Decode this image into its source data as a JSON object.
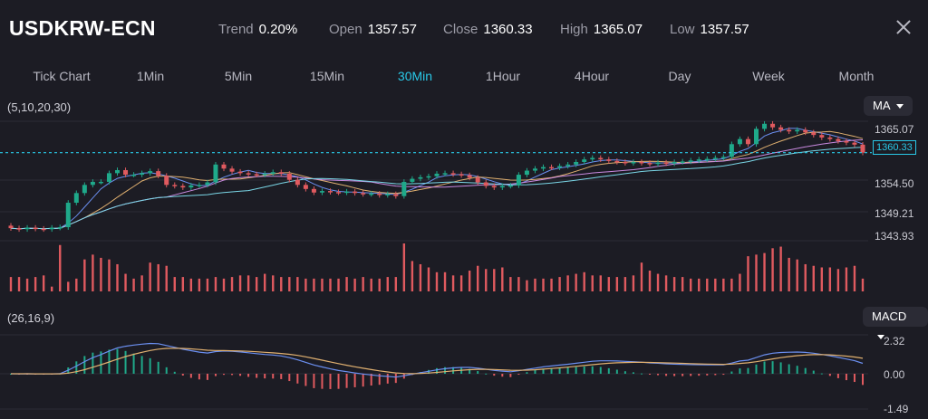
{
  "header": {
    "symbol": "USDKRW-ECN",
    "stats": [
      {
        "label": "Trend",
        "value": "0.20%"
      },
      {
        "label": "Open",
        "value": "1357.57"
      },
      {
        "label": "Close",
        "value": "1360.33"
      },
      {
        "label": "High",
        "value": "1365.07"
      },
      {
        "label": "Low",
        "value": "1357.57"
      }
    ]
  },
  "timeframes": [
    "Tick Chart",
    "1Min",
    "5Min",
    "15Min",
    "30Min",
    "1Hour",
    "4Hour",
    "Day",
    "Week",
    "Month"
  ],
  "active_timeframe": "30Min",
  "main_indicator": {
    "params": "(5,10,20,30)",
    "selector": "MA"
  },
  "macd_indicator": {
    "params": "(26,16,9)",
    "selector": "MACD"
  },
  "price_axis": [
    "1365.07",
    "1354.50",
    "1349.21",
    "1343.93"
  ],
  "current_price": "1360.33",
  "macd_axis": [
    "2.32",
    "0.00",
    "-1.49"
  ],
  "colors": {
    "up": "#1fa98a",
    "down": "#e05a5f",
    "accent": "#29c9e8",
    "ma_blue": "#6b8ff0",
    "ma_orange": "#e0b070",
    "ma_purple": "#c98ae0",
    "ma_cyan": "#7ad6e6"
  },
  "chart_data": {
    "type": "candlestick",
    "price_series": {
      "open": [
        1346.0,
        1345.5,
        1345.3,
        1345.6,
        1345.4,
        1345.3,
        1345.6,
        1345.7,
        1350.5,
        1352.4,
        1354.0,
        1354.6,
        1354.6,
        1356.3,
        1356.9,
        1356.0,
        1356.0,
        1356.3,
        1356.7,
        1355.8,
        1354.0,
        1353.8,
        1353.5,
        1353.9,
        1354.0,
        1354.5,
        1358.0,
        1357.2,
        1356.6,
        1356.3,
        1356.1,
        1356.0,
        1356.2,
        1356.5,
        1356.2,
        1355.0,
        1354.0,
        1353.2,
        1352.5,
        1352.8,
        1352.6,
        1352.5,
        1352.7,
        1352.4,
        1352.2,
        1352.3,
        1352.0,
        1352.2,
        1351.8,
        1354.6,
        1355.2,
        1355.5,
        1355.7,
        1356.2,
        1356.3,
        1356.1,
        1355.9,
        1355.4,
        1354.5,
        1353.8,
        1353.5,
        1353.8,
        1353.9,
        1356.0,
        1356.8,
        1357.2,
        1357.5,
        1357.4,
        1357.7,
        1358.0,
        1358.5,
        1359.0,
        1359.3,
        1359.0,
        1358.7,
        1358.5,
        1358.3,
        1358.5,
        1358.3,
        1358.1,
        1358.4,
        1358.2,
        1358.5,
        1358.6,
        1358.8,
        1359.0,
        1359.1,
        1359.3,
        1359.5,
        1362.0,
        1363.0,
        1362.0,
        1365.0,
        1366.0,
        1365.3,
        1364.8,
        1364.5,
        1364.8,
        1364.3,
        1363.8,
        1363.3,
        1363.0,
        1362.6,
        1362.3,
        1361.9
      ],
      "close": [
        1345.5,
        1345.3,
        1345.6,
        1345.4,
        1345.3,
        1345.6,
        1345.7,
        1350.5,
        1352.4,
        1354.0,
        1354.6,
        1354.6,
        1356.3,
        1356.9,
        1356.0,
        1356.0,
        1356.3,
        1356.7,
        1355.8,
        1354.0,
        1353.8,
        1353.5,
        1353.9,
        1354.0,
        1354.5,
        1358.0,
        1357.2,
        1356.6,
        1356.3,
        1356.1,
        1356.0,
        1356.2,
        1356.5,
        1356.2,
        1355.0,
        1354.0,
        1353.2,
        1352.5,
        1352.8,
        1352.6,
        1352.5,
        1352.7,
        1352.4,
        1352.2,
        1352.3,
        1352.0,
        1352.2,
        1351.8,
        1354.6,
        1355.2,
        1355.5,
        1355.7,
        1356.2,
        1356.3,
        1356.1,
        1355.9,
        1355.4,
        1354.5,
        1353.8,
        1353.5,
        1353.8,
        1353.9,
        1356.0,
        1356.8,
        1357.2,
        1357.5,
        1357.4,
        1357.7,
        1358.0,
        1358.5,
        1359.0,
        1359.3,
        1359.0,
        1358.7,
        1358.5,
        1358.3,
        1358.5,
        1358.3,
        1358.1,
        1358.4,
        1358.2,
        1358.5,
        1358.6,
        1358.8,
        1359.0,
        1359.1,
        1359.3,
        1359.5,
        1362.0,
        1363.0,
        1362.0,
        1365.0,
        1366.0,
        1365.3,
        1364.8,
        1364.5,
        1364.8,
        1364.3,
        1363.8,
        1363.3,
        1363.0,
        1362.6,
        1362.3,
        1361.9,
        1360.33
      ],
      "volume": [
        9,
        9,
        8,
        9,
        10,
        3,
        29,
        6,
        8,
        20,
        23,
        21,
        20,
        17,
        11,
        8,
        10,
        18,
        17,
        16,
        9,
        9,
        8,
        8,
        8,
        9,
        8,
        9,
        10,
        10,
        9,
        11,
        10,
        9,
        9,
        9,
        8,
        8,
        8,
        8,
        8,
        9,
        8,
        9,
        8,
        8,
        9,
        9,
        30,
        19,
        17,
        15,
        12,
        12,
        10,
        10,
        13,
        16,
        14,
        14,
        15,
        9,
        9,
        7,
        8,
        8,
        8,
        9,
        10,
        11,
        12,
        10,
        10,
        9,
        9,
        9,
        10,
        18,
        13,
        11,
        10,
        9,
        9,
        8,
        8,
        8,
        8,
        8,
        8,
        11,
        22,
        23,
        24,
        27,
        28,
        21,
        20,
        17,
        16,
        15,
        15,
        14,
        15,
        16,
        8
      ]
    },
    "macd_range": [
      -1.49,
      2.32
    ]
  }
}
